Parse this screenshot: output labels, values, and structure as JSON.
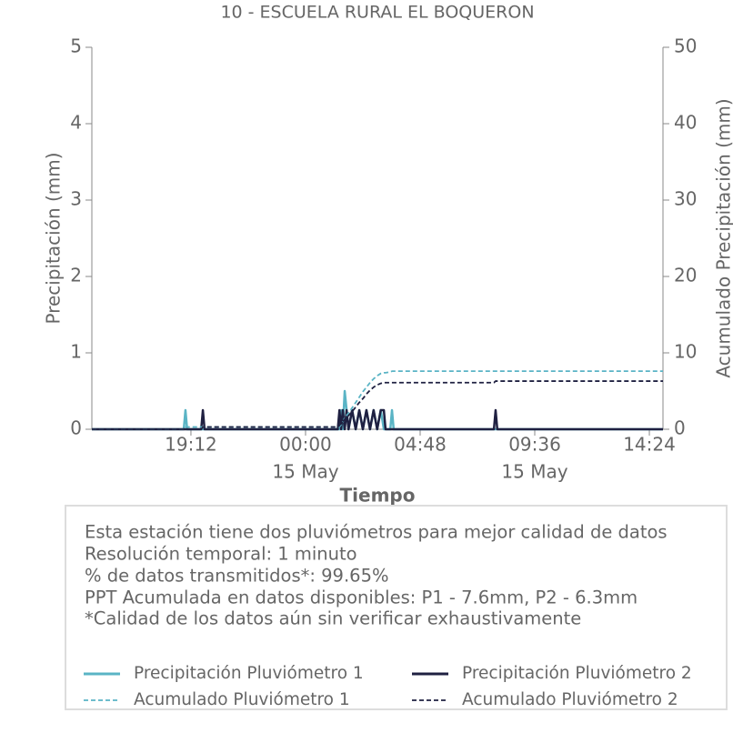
{
  "chart_data": {
    "type": "line",
    "title": "10 - ESCUELA RURAL EL BOQUERON",
    "x_label": "Tiempo",
    "y_label": "Precipitación (mm)",
    "y2_label": "Acumulado Precipitación (mm)",
    "x": [
      -8.95,
      -5.1,
      -5.03,
      -4.96,
      -4.37,
      -4.3,
      -4.23,
      1.35,
      1.42,
      1.49,
      1.56,
      1.64,
      1.72,
      1.8,
      1.95,
      2.1,
      2.25,
      2.4,
      2.55,
      2.7,
      2.85,
      3.0,
      3.15,
      3.28,
      3.35,
      3.55,
      3.62,
      3.69,
      4.0,
      7.89,
      7.96,
      8.03,
      14.97
    ],
    "xlim": [
      -8.95,
      14.97
    ],
    "xticks": [
      {
        "value": -4.8,
        "label": "19:12"
      },
      {
        "value": 0,
        "label": "00:00",
        "sublabel": "15 May"
      },
      {
        "value": 4.8,
        "label": "04:48"
      },
      {
        "value": 9.6,
        "label": "09:36",
        "sublabel": "15 May"
      },
      {
        "value": 14.4,
        "label": "14:24"
      }
    ],
    "ylim": [
      0,
      5
    ],
    "yticks": [
      0,
      1,
      2,
      3,
      4,
      5
    ],
    "y2lim": [
      0,
      50
    ],
    "y2ticks": [
      0,
      10,
      20,
      30,
      40,
      50
    ],
    "series": [
      {
        "name": "Precipitación Pluviómetro 1",
        "color": "#5ab4c5",
        "linestyle": "solid",
        "values": [
          0,
          0,
          0.25,
          0,
          0,
          0,
          0,
          0,
          0,
          0.25,
          0,
          0.5,
          0.25,
          0,
          0.25,
          0,
          0.25,
          0,
          0.25,
          0,
          0.25,
          0,
          0.25,
          0,
          0,
          0,
          0.25,
          0,
          0,
          0,
          0,
          0,
          0
        ]
      },
      {
        "name": "Precipitación Pluviómetro 2",
        "color": "#1f2041",
        "linestyle": "solid",
        "values": [
          0,
          0,
          0,
          0,
          0,
          0.25,
          0,
          0,
          0.25,
          0,
          0.25,
          0,
          0.25,
          0,
          0.25,
          0,
          0.25,
          0,
          0.25,
          0,
          0.25,
          0,
          0.25,
          0.25,
          0,
          0,
          0,
          0,
          0,
          0,
          0.25,
          0,
          0
        ]
      },
      {
        "name": "Acumulado Pluviómetro 1",
        "color": "#5ab4c5",
        "linestyle": "dashed",
        "axis": "y2",
        "values": [
          0,
          0,
          0.3,
          0.3,
          0.3,
          0.3,
          0.3,
          0.3,
          0.3,
          0.6,
          0.9,
          1.5,
          1.8,
          2.1,
          2.8,
          3.5,
          4.2,
          4.9,
          5.5,
          6.1,
          6.6,
          7.0,
          7.3,
          7.4,
          7.4,
          7.5,
          7.6,
          7.6,
          7.6,
          7.6,
          7.6,
          7.6,
          7.6
        ]
      },
      {
        "name": "Acumulado Pluviómetro 2",
        "color": "#1f2041",
        "linestyle": "dashed",
        "axis": "y2",
        "values": [
          0,
          0,
          0,
          0,
          0,
          0.3,
          0.3,
          0.3,
          0.5,
          0.8,
          1.0,
          1.3,
          1.5,
          1.8,
          2.3,
          2.9,
          3.5,
          4.0,
          4.6,
          5.1,
          5.5,
          5.8,
          6.0,
          6.1,
          6.1,
          6.1,
          6.1,
          6.1,
          6.1,
          6.1,
          6.3,
          6.3,
          6.3
        ]
      }
    ],
    "notes": [
      "Esta estación tiene dos pluviómetros para mejor calidad de datos",
      "Resolución temporal: 1 minuto",
      "% de datos transmitidos*: 99.65%",
      "PPT Acumulada en datos disponibles: P1 - 7.6mm, P2 - 6.3mm",
      "*Calidad de los datos aún sin verificar exhaustivamente"
    ]
  }
}
